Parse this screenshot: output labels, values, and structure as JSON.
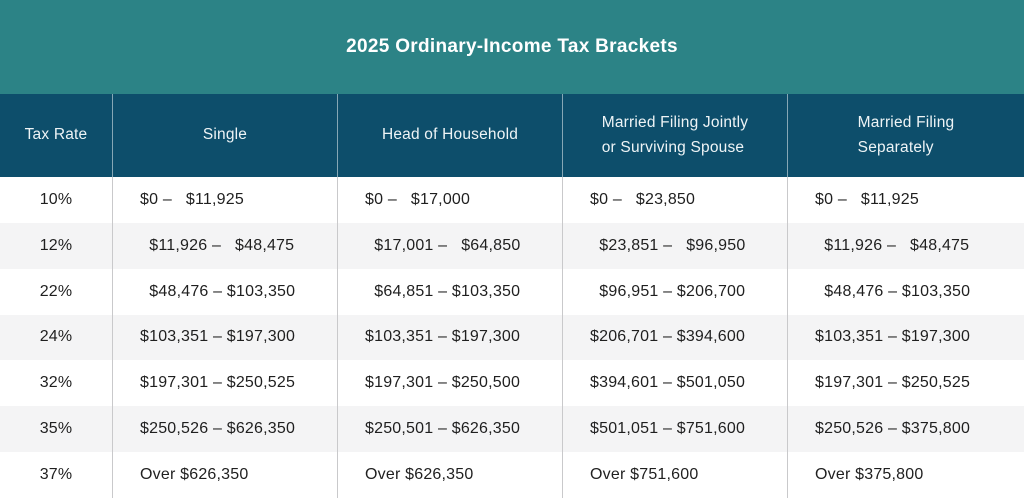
{
  "colors": {
    "banner_bg": "#2c8386",
    "header_bg": "#0d4e6b",
    "stripe_bg": "#f4f4f5",
    "row_bg": "#ffffff",
    "body_text": "#1f1f1f",
    "header_text": "#eef4f6",
    "divider": "#c9c9cb"
  },
  "chart_data": {
    "type": "table",
    "title": "2025 Ordinary-Income Tax Brackets",
    "headers": [
      "Tax Rate",
      "Single",
      "Head of Household",
      "Married Filing Jointly\nor Surviving Spouse",
      "Married Filing\nSeparately"
    ],
    "rows": [
      [
        "10%",
        "$0 –   $11,925",
        "$0 –   $17,000",
        "$0 –   $23,850",
        "$0 –   $11,925"
      ],
      [
        "12%",
        "  $11,926 –   $48,475",
        "  $17,001 –   $64,850",
        "  $23,851 –   $96,950",
        "  $11,926 –   $48,475"
      ],
      [
        "22%",
        "  $48,476 – $103,350",
        "  $64,851 – $103,350",
        "  $96,951 – $206,700",
        "  $48,476 – $103,350"
      ],
      [
        "24%",
        "$103,351 – $197,300",
        "$103,351 – $197,300",
        "$206,701 – $394,600",
        "$103,351 – $197,300"
      ],
      [
        "32%",
        "$197,301 – $250,525",
        "$197,301 – $250,500",
        "$394,601 – $501,050",
        "$197,301 – $250,525"
      ],
      [
        "35%",
        "$250,526 – $626,350",
        "$250,501 – $626,350",
        "$501,051 – $751,600",
        "$250,526 – $375,800"
      ],
      [
        "37%",
        "Over $626,350",
        "Over $626,350",
        "Over $751,600",
        "Over $375,800"
      ]
    ]
  }
}
